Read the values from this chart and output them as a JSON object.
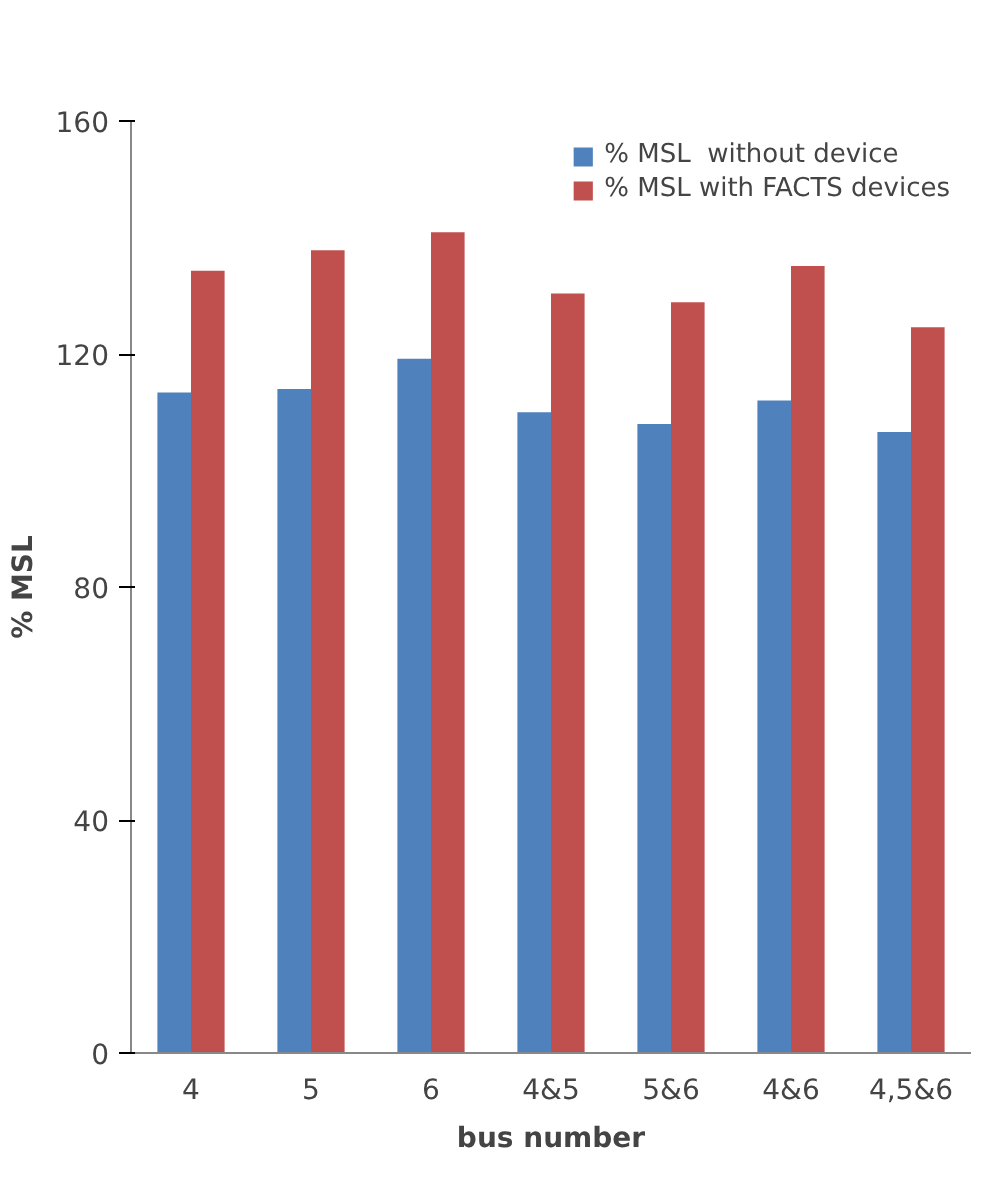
{
  "chart_data": {
    "type": "bar",
    "xlabel": "bus number",
    "ylabel": "% MSL",
    "categories": [
      "4",
      "5",
      "6",
      "4&5",
      "5&6",
      "4&6",
      "4,5&6"
    ],
    "series": [
      {
        "name": "% MSL  without device",
        "color": "#4f81bd",
        "values": [
          113.4,
          114,
          119.2,
          110,
          108,
          112,
          106.6
        ]
      },
      {
        "name": "% MSL with FACTS devices",
        "color": "#c0504d",
        "values": [
          134.3,
          137.8,
          140.9,
          130.4,
          128.9,
          135.1,
          124.6
        ]
      }
    ],
    "ylim": [
      0,
      160
    ],
    "yticks": [
      0,
      40,
      80,
      120,
      160
    ],
    "grid": false,
    "legend": "top right"
  }
}
